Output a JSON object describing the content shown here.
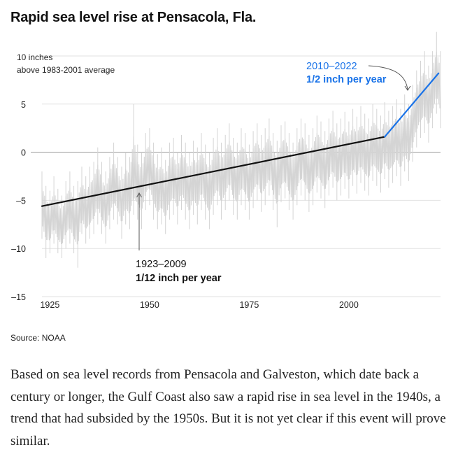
{
  "title": "Rapid sea level rise at Pensacola, Fla.",
  "source": "Source: NOAA",
  "body_text": "Based on sea level records from Pensacola and Galveston, which date back a century or longer, the Gulf Coast also saw a rapid rise in sea level in the 1940s, a trend that had subsided by the 1950s. But it is not yet clear if this event will prove similar.",
  "chart_data": {
    "type": "line",
    "title": "Rapid sea level rise at Pensacola, Fla.",
    "ylabel": "10 inches",
    "ylabel_sub": "above 1983-2001 average",
    "xlim": [
      1923,
      2023
    ],
    "ylim": [
      -15,
      10
    ],
    "yticks": [
      {
        "value": 10,
        "label": ""
      },
      {
        "value": 5,
        "label": "5"
      },
      {
        "value": 0,
        "label": "0"
      },
      {
        "value": -5,
        "label": "–5"
      },
      {
        "value": -10,
        "label": "–10"
      },
      {
        "value": -15,
        "label": "–15"
      }
    ],
    "xticks": [
      {
        "value": 1925,
        "label": "1925"
      },
      {
        "value": 1950,
        "label": "1950"
      },
      {
        "value": 1975,
        "label": "1975"
      },
      {
        "value": 2000,
        "label": "2000"
      }
    ],
    "series": [
      {
        "name": "",
        "color": "#d4d4d4",
        "x_start": 1923,
        "x_end": 2023,
        "values": [
          -5.5,
          -6.8,
          -7.5,
          -6.0,
          -7.2,
          -8.0,
          -6.5,
          -5.8,
          -7.0,
          -6.9,
          -5.0,
          -6.2,
          -5.5,
          -4.8,
          -3.5,
          -5.0,
          -6.0,
          -4.2,
          -3.0,
          -4.0,
          -5.5,
          -3.8,
          -4.5,
          -2.5,
          -3.2,
          -4.0,
          -2.0,
          -1.5,
          -3.0,
          -4.2,
          -3.5,
          -4.8,
          -3.0,
          -2.5,
          -3.8,
          -2.2,
          -3.0,
          -4.0,
          -2.8,
          -3.5,
          -2.0,
          -3.2,
          -4.0,
          -2.5,
          -1.8,
          -3.0,
          -2.2,
          -1.0,
          -2.5,
          -3.0,
          -1.5,
          -2.0,
          -3.2,
          -1.8,
          -1.0,
          -2.2,
          -1.5,
          -0.5,
          -2.0,
          -2.8,
          -1.2,
          -0.8,
          -2.0,
          -3.0,
          -1.5,
          -0.5,
          -1.0,
          -2.2,
          -1.5,
          -0.2,
          -0.8,
          -1.8,
          -0.5,
          0.3,
          -1.0,
          -0.5,
          0.2,
          -0.8,
          0.5,
          -0.3,
          0.8,
          0.0,
          -0.5,
          1.0,
          0.5,
          -0.2,
          1.2,
          0.3,
          0.8,
          1.5,
          0.5,
          2.0,
          1.0,
          3.0,
          4.5,
          5.5,
          6.0,
          5.0,
          6.5,
          8.0,
          6.5
        ],
        "values_step": "annual mean, 1923 to 2023",
        "high": [
          -2.0,
          -3.5,
          -4.0,
          -2.5,
          -3.8,
          -4.5,
          -3.0,
          -2.0,
          -3.5,
          -3.0,
          -1.5,
          -2.5,
          -1.5,
          -1.0,
          0.5,
          -1.0,
          -2.0,
          -0.5,
          1.0,
          -0.5,
          -1.5,
          0.0,
          -0.5,
          5.0,
          0.8,
          0.0,
          2.0,
          2.5,
          1.0,
          -0.2,
          0.5,
          -0.8,
          1.0,
          1.5,
          0.0,
          1.8,
          1.0,
          0.0,
          1.2,
          0.5,
          2.0,
          0.8,
          0.0,
          1.5,
          2.5,
          1.0,
          1.8,
          3.0,
          1.5,
          1.0,
          2.5,
          2.0,
          0.8,
          2.2,
          3.0,
          1.8,
          2.5,
          3.5,
          2.0,
          1.2,
          2.8,
          3.2,
          2.0,
          1.0,
          2.5,
          3.5,
          3.0,
          1.8,
          2.5,
          3.8,
          3.2,
          2.2,
          3.5,
          4.3,
          3.0,
          3.5,
          4.2,
          3.2,
          4.5,
          3.7,
          4.8,
          4.0,
          3.5,
          5.0,
          4.5,
          3.8,
          5.2,
          4.3,
          4.8,
          5.5,
          4.5,
          6.0,
          5.0,
          7.0,
          8.5,
          9.5,
          10.5,
          9.0,
          10.5,
          12.5,
          10.5
        ],
        "low": [
          -9.0,
          -11.0,
          -10.5,
          -9.5,
          -10.5,
          -11.0,
          -10.0,
          -9.5,
          -10.5,
          -12.0,
          -8.5,
          -9.5,
          -9.0,
          -8.5,
          -7.5,
          -8.5,
          -9.5,
          -8.0,
          -7.0,
          -7.5,
          -9.0,
          -7.5,
          -8.0,
          -6.5,
          -7.0,
          -8.0,
          -6.0,
          -5.5,
          -7.0,
          -8.0,
          -7.5,
          -8.5,
          -7.0,
          -6.5,
          -7.5,
          -6.0,
          -7.0,
          -8.0,
          -6.5,
          -7.5,
          -6.0,
          -7.0,
          -8.0,
          -6.5,
          -5.5,
          -7.0,
          -6.0,
          -5.0,
          -6.5,
          -7.0,
          -5.5,
          -6.0,
          -7.0,
          -5.8,
          -5.0,
          -6.2,
          -5.5,
          -4.5,
          -6.0,
          -7.8,
          -5.2,
          -4.8,
          -6.0,
          -7.0,
          -5.5,
          -4.5,
          -5.0,
          -6.2,
          -5.5,
          -4.2,
          -4.8,
          -5.8,
          -4.5,
          -3.7,
          -5.0,
          -4.5,
          -3.8,
          -4.8,
          -3.5,
          -4.3,
          -3.2,
          -4.0,
          -4.5,
          -3.0,
          -3.5,
          -4.2,
          -2.8,
          -3.7,
          -3.2,
          -2.5,
          -3.5,
          -2.0,
          -3.0,
          -1.0,
          0.5,
          1.5,
          2.0,
          1.0,
          2.5,
          4.0,
          2.5
        ]
      },
      {
        "name": "1923–2009 trend",
        "color": "#111111",
        "x": [
          1923,
          2009
        ],
        "y": [
          -5.6,
          1.6
        ]
      },
      {
        "name": "2010–2022 trend",
        "color": "#1a73e8",
        "x": [
          2009,
          2022.5
        ],
        "y": [
          1.6,
          8.2
        ]
      }
    ],
    "annotations": [
      {
        "period": "1923–2009",
        "rate": "1/12 inch per year",
        "color": "#111111"
      },
      {
        "period": "2010–2022",
        "rate": "1/2 inch per year",
        "color": "#1a73e8"
      }
    ],
    "grid": true,
    "legend": "none"
  }
}
